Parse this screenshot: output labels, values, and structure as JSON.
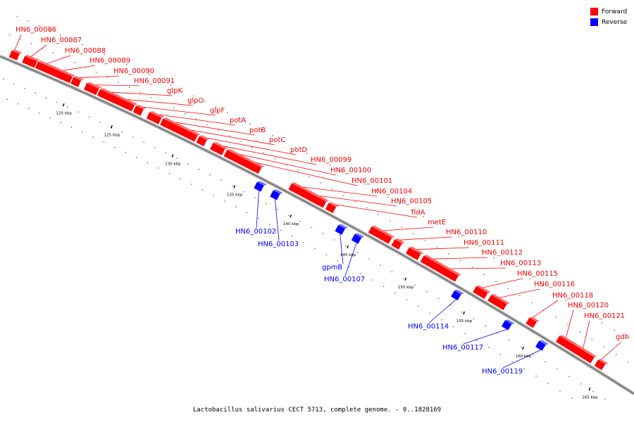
{
  "caption": "Lactobacillus salivarius CECT 5713, complete genome. - 0..1828169",
  "colors": {
    "forward": "#ff0000",
    "reverse": "#0000ff",
    "backbone": "#808080"
  },
  "legend": [
    {
      "label": "Forward",
      "color": "#ff0000"
    },
    {
      "label": "Reverse",
      "color": "#0000ff"
    }
  ],
  "ticks": [
    "120 kbp",
    "125 kbp",
    "130 kbp",
    "135 kbp",
    "140 kbp",
    "145 kbp",
    "150 kbp",
    "155 kbp",
    "160 kbp",
    "165 kbp"
  ],
  "genes": [
    {
      "name": "HN6_00086",
      "strand": "forward"
    },
    {
      "name": "HN6_00087",
      "strand": "forward"
    },
    {
      "name": "HN6_00088",
      "strand": "forward"
    },
    {
      "name": "HN6_00089",
      "strand": "forward"
    },
    {
      "name": "HN6_00090",
      "strand": "forward"
    },
    {
      "name": "HN6_00091",
      "strand": "forward"
    },
    {
      "name": "glpK",
      "strand": "forward"
    },
    {
      "name": "glpO",
      "strand": "forward"
    },
    {
      "name": "glpF",
      "strand": "forward"
    },
    {
      "name": "potA",
      "strand": "forward"
    },
    {
      "name": "potB",
      "strand": "forward"
    },
    {
      "name": "potC",
      "strand": "forward"
    },
    {
      "name": "potD",
      "strand": "forward"
    },
    {
      "name": "HN6_00099",
      "strand": "forward"
    },
    {
      "name": "HN6_00100",
      "strand": "forward"
    },
    {
      "name": "HN6_00101",
      "strand": "forward"
    },
    {
      "name": "HN6_00102",
      "strand": "reverse"
    },
    {
      "name": "HN6_00103",
      "strand": "reverse"
    },
    {
      "name": "HN6_00104",
      "strand": "forward"
    },
    {
      "name": "HN6_00105",
      "strand": "forward"
    },
    {
      "name": "fldA",
      "strand": "forward"
    },
    {
      "name": "gpmB",
      "strand": "reverse"
    },
    {
      "name": "HN6_00107",
      "strand": "reverse"
    },
    {
      "name": "metE",
      "strand": "forward"
    },
    {
      "name": "HN6_00110",
      "strand": "forward"
    },
    {
      "name": "HN6_00111",
      "strand": "forward"
    },
    {
      "name": "HN6_00112",
      "strand": "forward"
    },
    {
      "name": "HN6_00113",
      "strand": "forward"
    },
    {
      "name": "HN6_00114",
      "strand": "reverse"
    },
    {
      "name": "HN6_00115",
      "strand": "forward"
    },
    {
      "name": "HN6_00116",
      "strand": "forward"
    },
    {
      "name": "HN6_00117",
      "strand": "reverse"
    },
    {
      "name": "HN6_00118",
      "strand": "forward"
    },
    {
      "name": "HN6_00119",
      "strand": "reverse"
    },
    {
      "name": "HN6_00120",
      "strand": "forward"
    },
    {
      "name": "HN6_00121",
      "strand": "forward"
    },
    {
      "name": "gdh",
      "strand": "forward"
    }
  ]
}
